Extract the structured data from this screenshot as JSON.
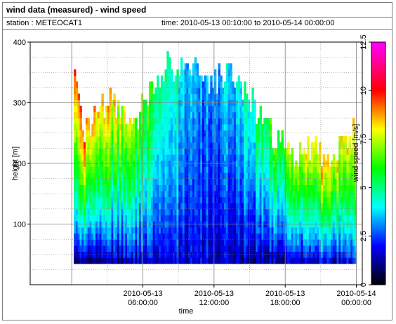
{
  "header": {
    "title": "wind data (measured) - wind speed",
    "station": "station : METEOCAT1",
    "timerange": "time: 2010-05-13 00:10:00 to 2010-05-14 00:00:00"
  },
  "chart_data": {
    "type": "heatmap",
    "title": "wind data (measured) - wind speed",
    "xlabel": "time",
    "ylabel": "height [m]",
    "colorbar_label": "wind speed [m/s]",
    "x_range_hours": [
      -3.5,
      24.5
    ],
    "ylim": [
      0,
      400
    ],
    "x_ticks": [
      {
        "hour": 6,
        "line1": "2010-05-13",
        "line2": "06:00:00"
      },
      {
        "hour": 12,
        "line1": "2010-05-13",
        "line2": "12:00:00"
      },
      {
        "hour": 18,
        "line1": "2010-05-13",
        "line2": "18:00:00"
      },
      {
        "hour": 24,
        "line1": "2010-05-14",
        "line2": "00:00:00"
      }
    ],
    "y_ticks": [
      {
        "value": 100,
        "label": "100"
      },
      {
        "value": 200,
        "label": "200"
      },
      {
        "value": 300,
        "label": "300"
      },
      {
        "value": 400,
        "label": "400"
      }
    ],
    "colorbar_ticks": [
      {
        "value": 0,
        "label": "0"
      },
      {
        "value": 2.5,
        "label": "2.5"
      },
      {
        "value": 5,
        "label": "5"
      },
      {
        "value": 7.5,
        "label": "7.5"
      },
      {
        "value": 10,
        "label": "10"
      },
      {
        "value": 12.5,
        "label": "12.5"
      }
    ],
    "colorbar_range": [
      0,
      12.5
    ],
    "grid": true,
    "data_height_range_m": [
      35,
      360
    ],
    "data_time_range_hours": [
      0.17,
      24.0
    ],
    "profile_top_heights_m": [
      {
        "hour": 0.17,
        "top": 350
      },
      {
        "hour": 1.0,
        "top": 250
      },
      {
        "hour": 2.0,
        "top": 280
      },
      {
        "hour": 3.0,
        "top": 300
      },
      {
        "hour": 4.0,
        "top": 290
      },
      {
        "hour": 5.0,
        "top": 240
      },
      {
        "hour": 6.0,
        "top": 300
      },
      {
        "hour": 7.0,
        "top": 330
      },
      {
        "hour": 8.0,
        "top": 360
      },
      {
        "hour": 9.0,
        "top": 355
      },
      {
        "hour": 10.0,
        "top": 360
      },
      {
        "hour": 11.0,
        "top": 345
      },
      {
        "hour": 12.0,
        "top": 330
      },
      {
        "hour": 13.0,
        "top": 350
      },
      {
        "hour": 14.0,
        "top": 320
      },
      {
        "hour": 15.0,
        "top": 300
      },
      {
        "hour": 16.0,
        "top": 270
      },
      {
        "hour": 17.0,
        "top": 240
      },
      {
        "hour": 18.0,
        "top": 230
      },
      {
        "hour": 19.0,
        "top": 210
      },
      {
        "hour": 20.0,
        "top": 225
      },
      {
        "hour": 21.0,
        "top": 210
      },
      {
        "hour": 22.0,
        "top": 215
      },
      {
        "hour": 23.0,
        "top": 240
      },
      {
        "hour": 24.0,
        "top": 250
      }
    ],
    "speed_at_40m_ms": [
      {
        "hour": 0.17,
        "speed": 1.2
      },
      {
        "hour": 4.0,
        "speed": 1.3
      },
      {
        "hour": 8.0,
        "speed": 2.0
      },
      {
        "hour": 12.0,
        "speed": 1.5
      },
      {
        "hour": 16.0,
        "speed": 1.2
      },
      {
        "hour": 20.0,
        "speed": 1.5
      },
      {
        "hour": 24.0,
        "speed": 2.0
      }
    ],
    "speed_near_top_ms": [
      {
        "hour": 0.17,
        "speed": 9.5
      },
      {
        "hour": 4.0,
        "speed": 8.0
      },
      {
        "hour": 8.0,
        "speed": 5.0
      },
      {
        "hour": 11.0,
        "speed": 3.0
      },
      {
        "hour": 14.0,
        "speed": 4.0
      },
      {
        "hour": 18.0,
        "speed": 7.0
      },
      {
        "hour": 21.0,
        "speed": 8.5
      },
      {
        "hour": 24.0,
        "speed": 8.0
      }
    ]
  }
}
